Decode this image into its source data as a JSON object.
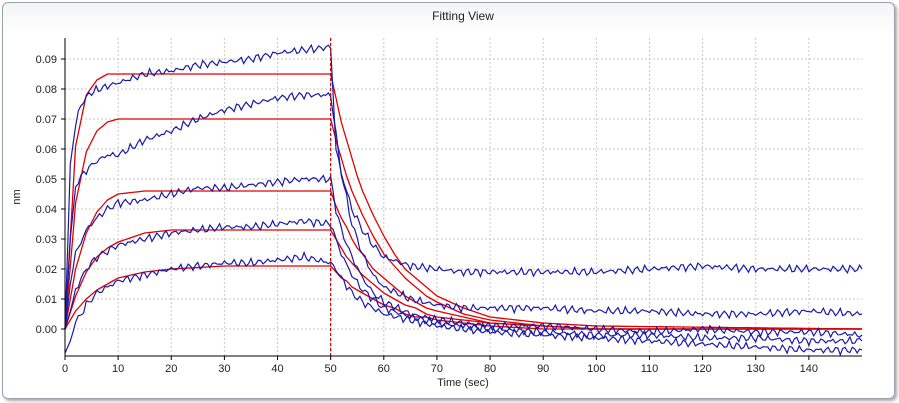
{
  "window": {
    "title": "Fitting View"
  },
  "chart_data": {
    "type": "line",
    "title": "Fitting View",
    "xlabel": "Time (sec)",
    "ylabel": "nm",
    "xlim": [
      0,
      150
    ],
    "ylim": [
      -0.009,
      0.097
    ],
    "x_ticks": [
      0,
      10,
      20,
      30,
      40,
      50,
      60,
      70,
      80,
      90,
      100,
      110,
      120,
      130,
      140
    ],
    "y_ticks": [
      0.0,
      0.01,
      0.02,
      0.03,
      0.04,
      0.05,
      0.06,
      0.07,
      0.08,
      0.09
    ],
    "x_tick_labels": [
      "0",
      "10",
      "20",
      "30",
      "40",
      "50",
      "60",
      "70",
      "80",
      "90",
      "100",
      "110",
      "120",
      "130",
      "140"
    ],
    "y_tick_labels": [
      "0.00",
      "0.01",
      "0.02",
      "0.03",
      "0.04",
      "0.05",
      "0.06",
      "0.07",
      "0.08",
      "0.09"
    ],
    "grid": true,
    "legend": "none",
    "dissociation_start_x": 50,
    "colors": {
      "measured": "#1a1aa8",
      "fit": "#e00000",
      "marker": "#c00000",
      "grid": "#c8c8c8"
    },
    "series": [
      {
        "kind": "measured",
        "x": [
          0,
          1,
          2,
          3,
          5,
          8,
          10,
          15,
          20,
          25,
          30,
          35,
          40,
          45,
          50,
          51,
          52,
          54,
          56,
          58,
          60,
          65,
          70,
          75,
          80,
          90,
          100,
          110,
          120,
          130,
          140,
          150
        ],
        "y": [
          0,
          0.055,
          0.068,
          0.075,
          0.079,
          0.081,
          0.082,
          0.085,
          0.086,
          0.088,
          0.089,
          0.09,
          0.092,
          0.093,
          0.094,
          0.06,
          0.052,
          0.04,
          0.033,
          0.028,
          0.024,
          0.021,
          0.02,
          0.019,
          0.019,
          0.019,
          0.019,
          0.02,
          0.021,
          0.02,
          0.02,
          0.02
        ]
      },
      {
        "kind": "measured",
        "x": [
          0,
          1,
          2,
          4,
          6,
          8,
          10,
          15,
          20,
          25,
          30,
          35,
          40,
          45,
          50,
          51,
          52,
          54,
          56,
          58,
          60,
          65,
          70,
          75,
          80,
          90,
          100,
          110,
          120,
          130,
          140,
          150
        ],
        "y": [
          0,
          0.03,
          0.048,
          0.053,
          0.056,
          0.058,
          0.058,
          0.063,
          0.066,
          0.07,
          0.073,
          0.075,
          0.077,
          0.078,
          0.078,
          0.065,
          0.052,
          0.035,
          0.025,
          0.018,
          0.014,
          0.01,
          0.008,
          0.007,
          0.007,
          0.007,
          0.006,
          0.006,
          0.005,
          0.005,
          0.006,
          0.005
        ]
      },
      {
        "kind": "measured",
        "x": [
          0,
          1,
          2,
          4,
          6,
          8,
          10,
          15,
          20,
          25,
          30,
          35,
          40,
          45,
          50,
          51,
          52,
          54,
          56,
          58,
          60,
          65,
          70,
          75,
          80,
          90,
          100,
          110,
          120,
          130,
          140,
          150
        ],
        "y": [
          0,
          0.015,
          0.025,
          0.033,
          0.037,
          0.04,
          0.042,
          0.043,
          0.045,
          0.047,
          0.047,
          0.048,
          0.049,
          0.05,
          0.05,
          0.04,
          0.033,
          0.024,
          0.017,
          0.012,
          0.009,
          0.005,
          0.003,
          0.002,
          0.001,
          0.001,
          0.0,
          -0.001,
          0.0,
          -0.001,
          -0.001,
          -0.002
        ]
      },
      {
        "kind": "measured",
        "x": [
          0,
          1,
          2,
          4,
          6,
          8,
          10,
          15,
          20,
          25,
          30,
          35,
          40,
          45,
          50,
          51,
          52,
          54,
          56,
          58,
          60,
          65,
          70,
          75,
          80,
          90,
          100,
          110,
          120,
          130,
          140,
          150
        ],
        "y": [
          0,
          0.006,
          0.013,
          0.02,
          0.024,
          0.026,
          0.028,
          0.03,
          0.032,
          0.033,
          0.034,
          0.034,
          0.035,
          0.036,
          0.035,
          0.03,
          0.025,
          0.018,
          0.013,
          0.01,
          0.007,
          0.004,
          0.002,
          0.001,
          0.0,
          -0.001,
          -0.002,
          -0.002,
          -0.003,
          -0.003,
          -0.004,
          -0.004
        ]
      },
      {
        "kind": "measured",
        "x": [
          0,
          1,
          2,
          4,
          6,
          8,
          10,
          15,
          20,
          25,
          30,
          35,
          40,
          45,
          50,
          51,
          52,
          54,
          56,
          58,
          60,
          65,
          70,
          75,
          80,
          90,
          100,
          110,
          120,
          130,
          140,
          150
        ],
        "y": [
          -0.008,
          -0.004,
          0.002,
          0.008,
          0.012,
          0.014,
          0.016,
          0.018,
          0.02,
          0.021,
          0.022,
          0.022,
          0.023,
          0.024,
          0.022,
          0.02,
          0.017,
          0.012,
          0.009,
          0.007,
          0.005,
          0.003,
          0.001,
          0.0,
          -0.001,
          -0.002,
          -0.003,
          -0.004,
          -0.005,
          -0.006,
          -0.007,
          -0.007
        ]
      },
      {
        "kind": "fit",
        "x": [
          0,
          2,
          4,
          6,
          8,
          10,
          15,
          20,
          30,
          40,
          50,
          51,
          52,
          53,
          54,
          55,
          56,
          58,
          60,
          62,
          64,
          66,
          68,
          70,
          75,
          80,
          90,
          100,
          150
        ],
        "y": [
          0,
          0.061,
          0.078,
          0.083,
          0.085,
          0.085,
          0.085,
          0.085,
          0.085,
          0.085,
          0.085,
          0.077,
          0.069,
          0.063,
          0.057,
          0.051,
          0.046,
          0.038,
          0.031,
          0.025,
          0.02,
          0.017,
          0.014,
          0.011,
          0.007,
          0.004,
          0.002,
          0.001,
          0.0
        ]
      },
      {
        "kind": "fit",
        "x": [
          0,
          2,
          4,
          6,
          8,
          10,
          15,
          20,
          30,
          40,
          50,
          51,
          52,
          53,
          54,
          55,
          56,
          58,
          60,
          62,
          64,
          66,
          68,
          70,
          75,
          80,
          90,
          100,
          150
        ],
        "y": [
          0,
          0.042,
          0.059,
          0.066,
          0.069,
          0.07,
          0.07,
          0.07,
          0.07,
          0.07,
          0.07,
          0.063,
          0.057,
          0.051,
          0.046,
          0.042,
          0.038,
          0.031,
          0.025,
          0.021,
          0.017,
          0.014,
          0.011,
          0.009,
          0.005,
          0.003,
          0.001,
          0.0,
          0.0
        ]
      },
      {
        "kind": "fit",
        "x": [
          0,
          2,
          4,
          6,
          8,
          10,
          15,
          20,
          30,
          40,
          50,
          51,
          52,
          53,
          54,
          55,
          56,
          58,
          60,
          62,
          64,
          66,
          68,
          70,
          75,
          80,
          90,
          100,
          150
        ],
        "y": [
          0,
          0.02,
          0.032,
          0.039,
          0.043,
          0.045,
          0.046,
          0.046,
          0.046,
          0.046,
          0.046,
          0.041,
          0.037,
          0.034,
          0.03,
          0.027,
          0.025,
          0.02,
          0.017,
          0.014,
          0.011,
          0.009,
          0.007,
          0.006,
          0.004,
          0.002,
          0.001,
          0.0,
          0.0
        ]
      },
      {
        "kind": "fit",
        "x": [
          0,
          2,
          4,
          6,
          8,
          10,
          15,
          20,
          30,
          40,
          50,
          51,
          52,
          53,
          54,
          55,
          56,
          58,
          60,
          62,
          64,
          66,
          68,
          70,
          75,
          80,
          90,
          100,
          150
        ],
        "y": [
          0,
          0.011,
          0.019,
          0.024,
          0.027,
          0.029,
          0.032,
          0.033,
          0.033,
          0.033,
          0.033,
          0.03,
          0.027,
          0.024,
          0.022,
          0.02,
          0.018,
          0.015,
          0.012,
          0.01,
          0.008,
          0.007,
          0.005,
          0.004,
          0.003,
          0.002,
          0.001,
          0.0,
          0.0
        ]
      },
      {
        "kind": "fit",
        "x": [
          0,
          2,
          4,
          6,
          8,
          10,
          15,
          20,
          30,
          40,
          50,
          51,
          52,
          53,
          54,
          55,
          56,
          58,
          60,
          62,
          64,
          66,
          68,
          70,
          75,
          80,
          90,
          100,
          150
        ],
        "y": [
          0,
          0.006,
          0.01,
          0.013,
          0.015,
          0.017,
          0.019,
          0.02,
          0.021,
          0.021,
          0.021,
          0.019,
          0.017,
          0.016,
          0.014,
          0.013,
          0.012,
          0.01,
          0.008,
          0.007,
          0.005,
          0.004,
          0.004,
          0.003,
          0.002,
          0.001,
          0.0,
          0.0,
          0.0
        ]
      }
    ]
  }
}
